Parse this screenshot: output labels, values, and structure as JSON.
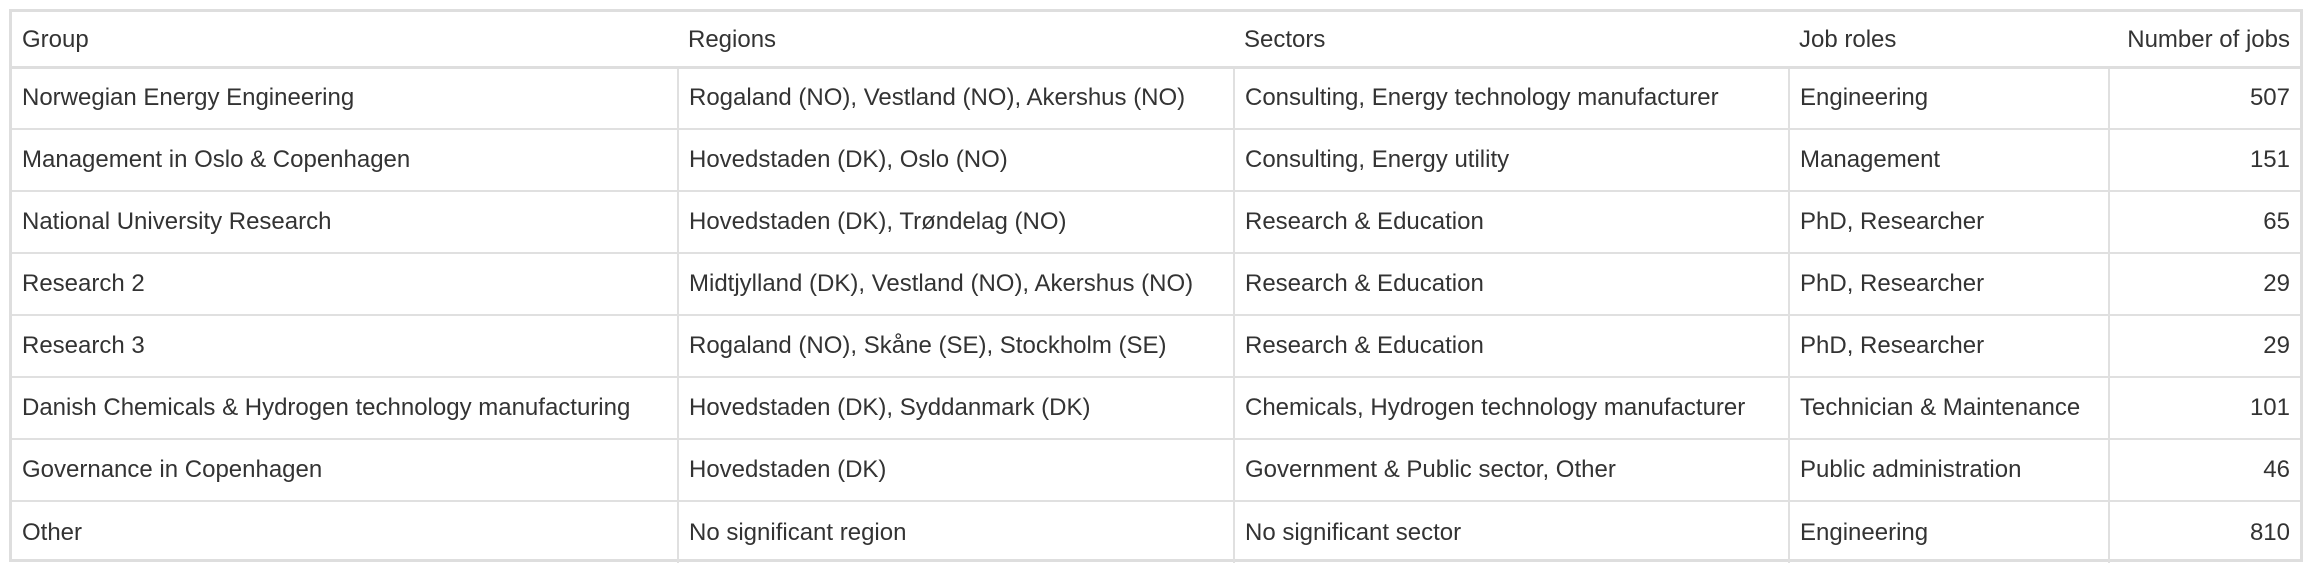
{
  "table": {
    "headers": {
      "group": "Group",
      "regions": "Regions",
      "sectors": "Sectors",
      "job_roles": "Job roles",
      "number_of_jobs": "Number of jobs"
    },
    "rows": [
      {
        "group": "Norwegian Energy Engineering",
        "regions": "Rogaland (NO), Vestland (NO), Akershus (NO)",
        "sectors": "Consulting, Energy technology manufacturer",
        "job_roles": "Engineering",
        "number_of_jobs": "507"
      },
      {
        "group": "Management in Oslo & Copenhagen",
        "regions": "Hovedstaden (DK), Oslo (NO)",
        "sectors": "Consulting, Energy utility",
        "job_roles": "Management",
        "number_of_jobs": "151"
      },
      {
        "group": "National University Research",
        "regions": "Hovedstaden (DK), Trøndelag (NO)",
        "sectors": "Research & Education",
        "job_roles": "PhD, Researcher",
        "number_of_jobs": "65"
      },
      {
        "group": "Research 2",
        "regions": "Midtjylland (DK), Vestland (NO), Akershus (NO)",
        "sectors": "Research & Education",
        "job_roles": "PhD, Researcher",
        "number_of_jobs": "29"
      },
      {
        "group": "Research 3",
        "regions": "Rogaland (NO), Skåne (SE), Stockholm (SE)",
        "sectors": "Research & Education",
        "job_roles": "PhD, Researcher",
        "number_of_jobs": "29"
      },
      {
        "group": "Danish Chemicals & Hydrogen technology manufacturing",
        "regions": "Hovedstaden (DK), Syddanmark (DK)",
        "sectors": "Chemicals, Hydrogen technology manufacturer",
        "job_roles": "Technician & Maintenance",
        "number_of_jobs": "101"
      },
      {
        "group": "Governance in Copenhagen",
        "regions": "Hovedstaden (DK)",
        "sectors": "Government & Public sector, Other",
        "job_roles": "Public administration",
        "number_of_jobs": "46"
      },
      {
        "group": "Other",
        "regions": "No significant region",
        "sectors": "No significant sector",
        "job_roles": "Engineering",
        "number_of_jobs": "810"
      }
    ]
  }
}
